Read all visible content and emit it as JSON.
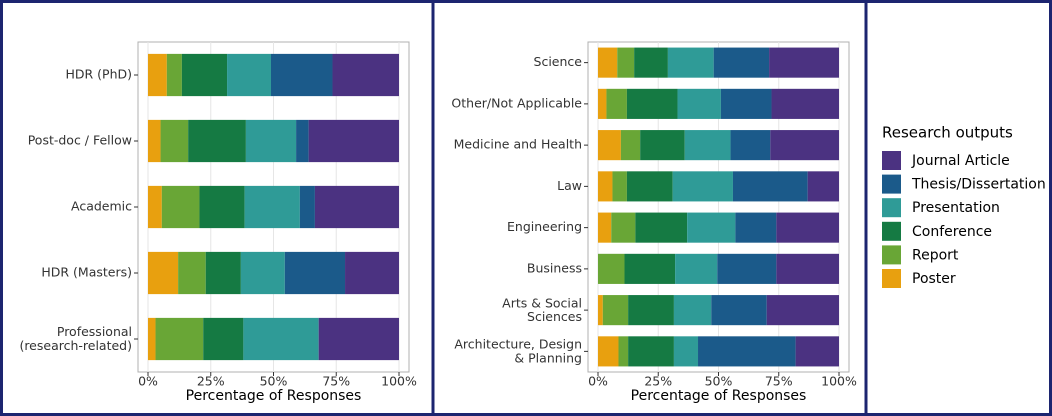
{
  "chart_data": [
    {
      "type": "bar",
      "orientation": "horizontal",
      "stacked": true,
      "categories": [
        "HDR (PhD)",
        "Post-doc / Fellow",
        "Academic",
        "HDR (Masters)",
        "Professional\n(research-related)"
      ],
      "series": [
        {
          "name": "Poster",
          "color": "#e8a00f",
          "values": [
            7.5,
            5,
            5.5,
            12,
            3
          ]
        },
        {
          "name": "Report",
          "color": "#69a636",
          "values": [
            6,
            11,
            15,
            11,
            19
          ]
        },
        {
          "name": "Conference",
          "color": "#157a43",
          "values": [
            18,
            23,
            18,
            14,
            16
          ]
        },
        {
          "name": "Presentation",
          "color": "#2f9b97",
          "values": [
            17.5,
            20,
            22,
            17.5,
            30
          ]
        },
        {
          "name": "Thesis/Dissertation",
          "color": "#1b5a8a",
          "values": [
            24.5,
            5,
            6,
            24,
            0
          ]
        },
        {
          "name": "Journal Article",
          "color": "#4b3281",
          "values": [
            26.5,
            36,
            33.5,
            21.5,
            32
          ]
        }
      ],
      "xlim": [
        0,
        100
      ],
      "xticks": [
        {
          "value": 0,
          "label": "0%"
        },
        {
          "value": 25,
          "label": "25%"
        },
        {
          "value": 50,
          "label": "50%"
        },
        {
          "value": 75,
          "label": "75%"
        },
        {
          "value": 100,
          "label": "100%"
        }
      ],
      "x_label": "Percentage of Responses",
      "grid": true,
      "legend_title": "Research outputs",
      "legend": "right"
    },
    {
      "type": "bar",
      "orientation": "horizontal",
      "stacked": true,
      "categories": [
        "Science",
        "Other/Not Applicable",
        "Medicine and Health",
        "Law",
        "Engineering",
        "Business",
        "Arts & Social\nSciences",
        "Architecture, Design\n& Planning"
      ],
      "series": [
        {
          "name": "Poster",
          "color": "#e8a00f",
          "values": [
            8,
            3.5,
            9.5,
            6,
            5.5,
            0,
            2,
            8.5
          ]
        },
        {
          "name": "Report",
          "color": "#69a636",
          "values": [
            7,
            8.5,
            8,
            6,
            10,
            11,
            10.5,
            4
          ]
        },
        {
          "name": "Conference",
          "color": "#157a43",
          "values": [
            14,
            21,
            18.5,
            19,
            21.5,
            21,
            19,
            19
          ]
        },
        {
          "name": "Presentation",
          "color": "#2f9b97",
          "values": [
            19,
            18,
            19,
            25,
            20,
            17.5,
            15.5,
            10
          ]
        },
        {
          "name": "Thesis/Dissertation",
          "color": "#1b5a8a",
          "values": [
            23,
            21,
            16.5,
            31,
            17,
            24.5,
            23,
            40.5
          ]
        },
        {
          "name": "Journal Article",
          "color": "#4b3281",
          "values": [
            29,
            28,
            28.5,
            13,
            26,
            26,
            30,
            18
          ]
        }
      ],
      "xlim": [
        0,
        100
      ],
      "xticks": [
        {
          "value": 0,
          "label": "0%"
        },
        {
          "value": 25,
          "label": "25%"
        },
        {
          "value": 50,
          "label": "50%"
        },
        {
          "value": 75,
          "label": "75%"
        },
        {
          "value": 100,
          "label": "100%"
        }
      ],
      "x_label": "Percentage of Responses",
      "grid": true
    }
  ]
}
